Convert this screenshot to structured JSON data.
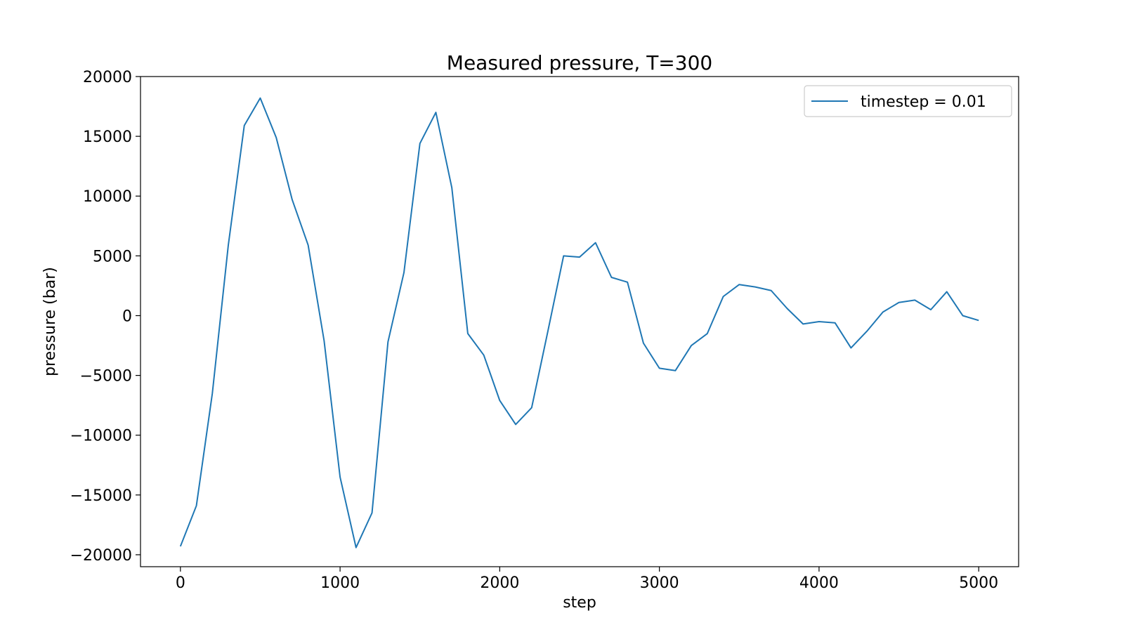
{
  "chart_data": {
    "type": "line",
    "title": "Measured pressure, T=300",
    "xlabel": "step",
    "ylabel": "pressure (bar)",
    "xlim": [
      -250,
      5250
    ],
    "ylim": [
      -21000,
      20000
    ],
    "xticks": [
      0,
      1000,
      2000,
      3000,
      4000,
      5000
    ],
    "xtick_labels": [
      "0",
      "1000",
      "2000",
      "3000",
      "4000",
      "5000"
    ],
    "yticks": [
      20000,
      15000,
      10000,
      5000,
      0,
      -5000,
      -10000,
      -15000,
      -20000
    ],
    "ytick_labels": [
      "20000",
      "15000",
      "10000",
      "5000",
      "0",
      "−5000",
      "−10000",
      "−15000",
      "−20000"
    ],
    "grid": false,
    "legend_position": "top-right",
    "series": [
      {
        "name": "timestep = 0.01",
        "color": "#1f77b4",
        "x": [
          0,
          100,
          200,
          300,
          400,
          500,
          600,
          700,
          800,
          900,
          1000,
          1100,
          1200,
          1300,
          1400,
          1500,
          1600,
          1700,
          1800,
          1900,
          2000,
          2100,
          2200,
          2300,
          2400,
          2500,
          2600,
          2700,
          2800,
          2900,
          3000,
          3100,
          3200,
          3300,
          3400,
          3500,
          3600,
          3700,
          3800,
          3900,
          4000,
          4100,
          4200,
          4300,
          4400,
          4500,
          4600,
          4700,
          4800,
          4900,
          5000
        ],
        "y": [
          -19300,
          -15900,
          -6500,
          5900,
          15900,
          18200,
          14900,
          9700,
          5900,
          -2100,
          -13500,
          -19400,
          -16500,
          -2200,
          3600,
          14400,
          17000,
          10700,
          -1500,
          -3300,
          -7100,
          -9100,
          -7700,
          -1400,
          5000,
          4900,
          6100,
          3200,
          2800,
          -2300,
          -4400,
          -4600,
          -2500,
          -1500,
          1600,
          2600,
          2400,
          2100,
          600,
          -700,
          -500,
          -600,
          -2700,
          -1300,
          300,
          1100,
          1300,
          500,
          2000,
          0,
          -400
        ]
      }
    ]
  }
}
